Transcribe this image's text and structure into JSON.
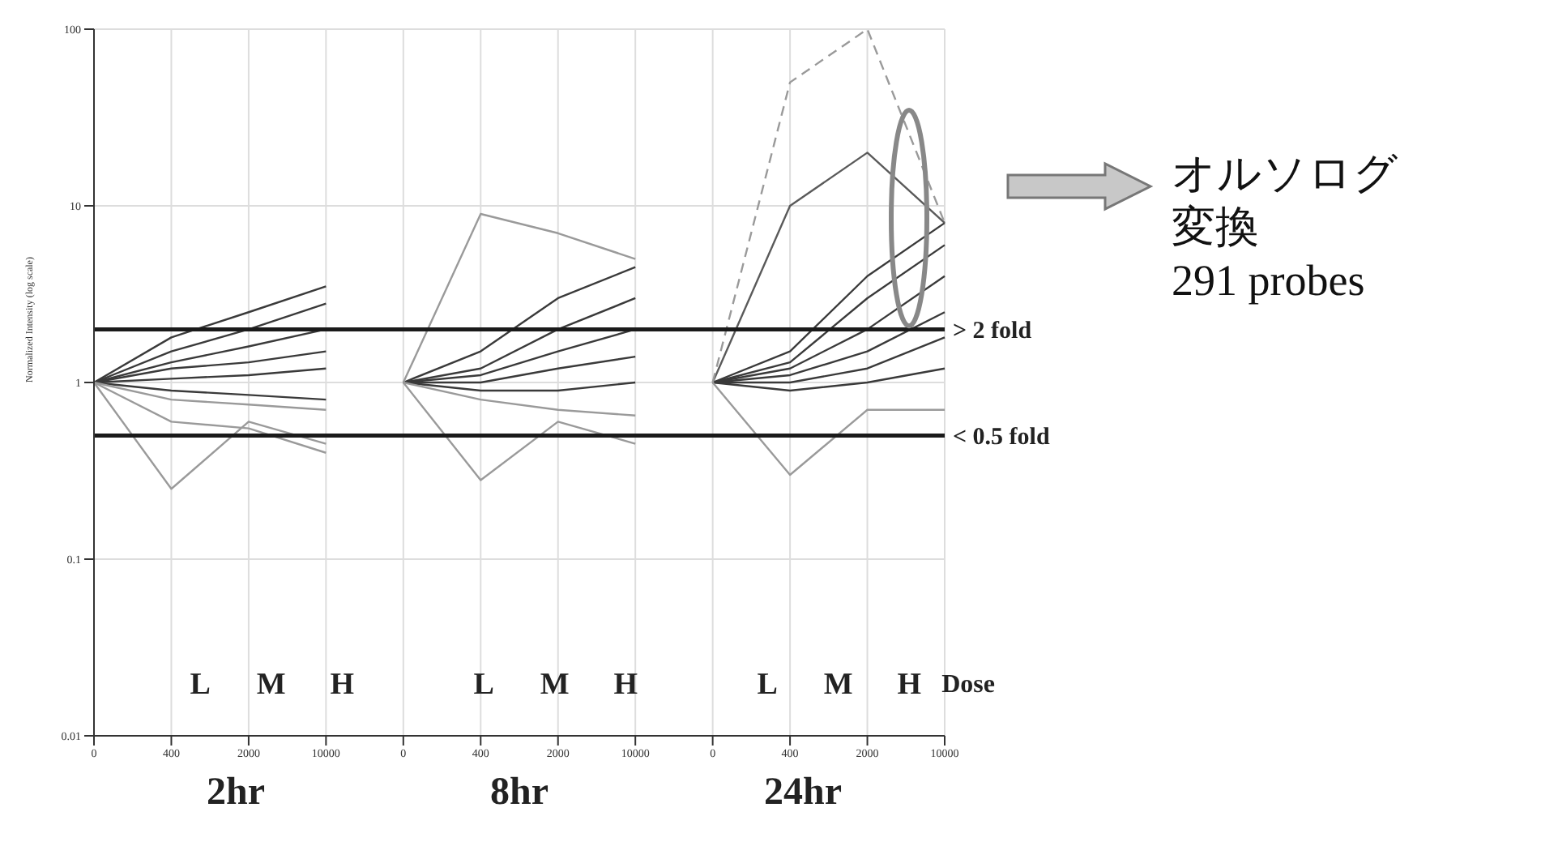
{
  "chart_data": {
    "type": "line",
    "ylabel": "Normalized Intensity (log scale)",
    "log": "y",
    "grid": true,
    "marker": "none",
    "categories": [
      "0",
      "400",
      "2000",
      "10000",
      "0",
      "400",
      "2000",
      "10000",
      "0",
      "400",
      "2000",
      "10000"
    ],
    "ylim": [
      0.01,
      100
    ],
    "yticks": [
      0.01,
      0.1,
      1,
      10,
      100
    ],
    "ref_lines": [
      {
        "axis": "y",
        "value": 2,
        "label": "> 2 fold",
        "color": "#1a1a1a"
      },
      {
        "axis": "y",
        "value": 0.5,
        "label": "< 0.5 fold",
        "color": "#1a1a1a"
      }
    ],
    "series": [
      {
        "color": "#3a3a3a",
        "values": [
          1,
          1.8,
          2.5,
          3.5,
          null,
          null,
          null,
          null,
          null,
          null,
          null,
          null
        ]
      },
      {
        "color": "#3a3a3a",
        "values": [
          1,
          1.5,
          2,
          2.8,
          null,
          null,
          null,
          null,
          null,
          null,
          null,
          null
        ]
      },
      {
        "color": "#3a3a3a",
        "values": [
          1,
          1.3,
          1.6,
          2,
          null,
          null,
          null,
          null,
          null,
          null,
          null,
          null
        ]
      },
      {
        "color": "#3a3a3a",
        "values": [
          1,
          1.2,
          1.3,
          1.5,
          null,
          null,
          null,
          null,
          null,
          null,
          null,
          null
        ]
      },
      {
        "color": "#3a3a3a",
        "values": [
          1,
          1.05,
          1.1,
          1.2,
          null,
          null,
          null,
          null,
          null,
          null,
          null,
          null
        ]
      },
      {
        "color": "#3a3a3a",
        "values": [
          1,
          0.9,
          0.85,
          0.8,
          null,
          null,
          null,
          null,
          null,
          null,
          null,
          null
        ]
      },
      {
        "color": "#9a9a9a",
        "values": [
          1,
          0.8,
          0.75,
          0.7,
          null,
          null,
          null,
          null,
          null,
          null,
          null,
          null
        ]
      },
      {
        "color": "#9a9a9a",
        "values": [
          1,
          0.6,
          0.55,
          0.4,
          null,
          null,
          null,
          null,
          null,
          null,
          null,
          null
        ]
      },
      {
        "color": "#9a9a9a",
        "values": [
          1,
          0.25,
          0.6,
          0.45,
          null,
          null,
          null,
          null,
          null,
          null,
          null,
          null
        ]
      },
      {
        "color": "#3a3a3a",
        "values": [
          null,
          null,
          null,
          null,
          1,
          1.5,
          3,
          4.5,
          null,
          null,
          null,
          null
        ]
      },
      {
        "color": "#3a3a3a",
        "values": [
          null,
          null,
          null,
          null,
          1,
          1.2,
          2,
          3,
          null,
          null,
          null,
          null
        ]
      },
      {
        "color": "#3a3a3a",
        "values": [
          null,
          null,
          null,
          null,
          1,
          1.1,
          1.5,
          2,
          null,
          null,
          null,
          null
        ]
      },
      {
        "color": "#3a3a3a",
        "values": [
          null,
          null,
          null,
          null,
          1,
          1,
          1.2,
          1.4,
          null,
          null,
          null,
          null
        ]
      },
      {
        "color": "#3a3a3a",
        "values": [
          null,
          null,
          null,
          null,
          1,
          0.9,
          0.9,
          1,
          null,
          null,
          null,
          null
        ]
      },
      {
        "color": "#9a9a9a",
        "values": [
          null,
          null,
          null,
          null,
          1,
          0.8,
          0.7,
          0.65,
          null,
          null,
          null,
          null
        ]
      },
      {
        "color": "#9a9a9a",
        "values": [
          null,
          null,
          null,
          null,
          1,
          9,
          7,
          5,
          null,
          null,
          null,
          null
        ]
      },
      {
        "color": "#9a9a9a",
        "values": [
          null,
          null,
          null,
          null,
          1,
          0.28,
          0.6,
          0.45,
          null,
          null,
          null,
          null
        ]
      },
      {
        "color": "#3a3a3a",
        "values": [
          null,
          null,
          null,
          null,
          null,
          null,
          null,
          null,
          1,
          1.5,
          4,
          8
        ]
      },
      {
        "color": "#3a3a3a",
        "values": [
          null,
          null,
          null,
          null,
          null,
          null,
          null,
          null,
          1,
          1.3,
          3,
          6
        ]
      },
      {
        "color": "#3a3a3a",
        "values": [
          null,
          null,
          null,
          null,
          null,
          null,
          null,
          null,
          1,
          1.2,
          2,
          4
        ]
      },
      {
        "color": "#3a3a3a",
        "values": [
          null,
          null,
          null,
          null,
          null,
          null,
          null,
          null,
          1,
          1.1,
          1.5,
          2.5
        ]
      },
      {
        "color": "#3a3a3a",
        "values": [
          null,
          null,
          null,
          null,
          null,
          null,
          null,
          null,
          1,
          1,
          1.2,
          1.8
        ]
      },
      {
        "color": "#3a3a3a",
        "values": [
          null,
          null,
          null,
          null,
          null,
          null,
          null,
          null,
          1,
          0.9,
          1,
          1.2
        ]
      },
      {
        "color": "#5a5a5a",
        "values": [
          null,
          null,
          null,
          null,
          null,
          null,
          null,
          null,
          1,
          10,
          20,
          8
        ]
      },
      {
        "color": "#9a9a9a",
        "line_style": "dashed",
        "values": [
          null,
          null,
          null,
          null,
          null,
          null,
          null,
          null,
          1,
          50,
          100,
          8
        ]
      },
      {
        "color": "#9a9a9a",
        "values": [
          null,
          null,
          null,
          null,
          null,
          null,
          null,
          null,
          1,
          0.3,
          0.7,
          0.7
        ]
      }
    ],
    "annotations": [
      "L",
      "M",
      "H",
      "L",
      "M",
      "H",
      "L",
      "M",
      "H",
      "Dose",
      "2hr",
      "8hr",
      "24hr",
      "オルソログ変換",
      "291 probes"
    ]
  }
}
